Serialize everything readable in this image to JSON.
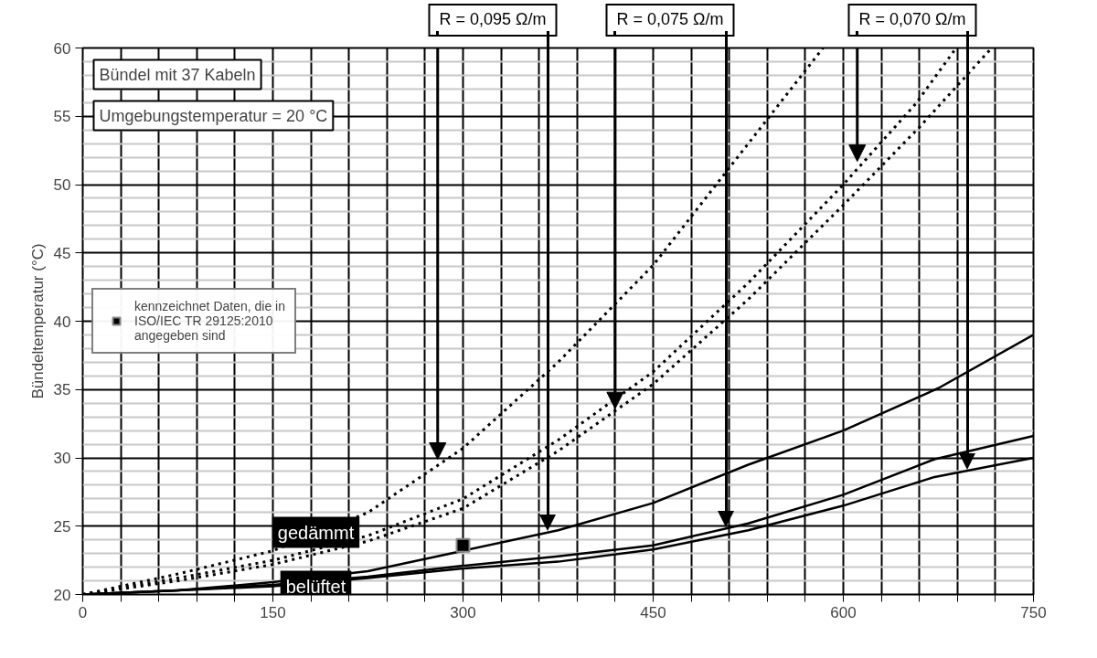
{
  "chart_data": {
    "type": "line",
    "ylabel": "Bündeltemperatur (°C)",
    "xlim": [
      0,
      750
    ],
    "xticks": [
      0,
      {
        "value": 30,
        "label": null
      },
      {
        "value": 60,
        "label": null
      },
      {
        "value": 90,
        "label": null
      },
      {
        "value": 120,
        "label": null
      },
      150,
      {
        "value": 180,
        "label": null
      },
      {
        "value": 210,
        "label": null
      },
      {
        "value": 240,
        "label": null
      },
      {
        "value": 270,
        "label": null
      },
      300,
      {
        "value": 330,
        "label": null
      },
      {
        "value": 360,
        "label": null
      },
      {
        "value": 390,
        "label": null
      },
      {
        "value": 420,
        "label": null
      },
      450,
      {
        "value": 480,
        "label": null
      },
      {
        "value": 510,
        "label": null
      },
      {
        "value": 540,
        "label": null
      },
      {
        "value": 570,
        "label": null
      },
      600,
      {
        "value": 630,
        "label": null
      },
      {
        "value": 660,
        "label": null
      },
      {
        "value": 690,
        "label": null
      },
      {
        "value": 720,
        "label": null
      },
      750
    ],
    "ylim": [
      20,
      60
    ],
    "yticks": [
      20,
      25,
      30,
      35,
      40,
      45,
      50,
      55,
      60
    ],
    "grid": true,
    "legend": "left",
    "series": [
      {
        "color": "#000000",
        "line_style": "dotted",
        "x": [
          0,
          75,
          150,
          225,
          300,
          375,
          450,
          525,
          584
        ],
        "values": [
          20,
          21.5,
          23.2,
          26.0,
          30.7,
          37.0,
          44.1,
          53.0,
          60
        ]
      },
      {
        "color": "#000000",
        "line_style": "dotted",
        "x": [
          0,
          75,
          150,
          225,
          300,
          375,
          450,
          525,
          600,
          657,
          689
        ],
        "values": [
          20,
          21.2,
          22.5,
          24.3,
          27.0,
          31.3,
          36.3,
          42.8,
          50.0,
          55.9,
          60
        ]
      },
      {
        "color": "#000000",
        "line_style": "dotted",
        "x": [
          0,
          75,
          150,
          225,
          300,
          375,
          450,
          525,
          600,
          660,
          717
        ],
        "values": [
          20,
          21.0,
          22.2,
          23.9,
          26.3,
          30.5,
          35.4,
          41.6,
          48.5,
          54.2,
          60
        ]
      },
      {
        "color": "#000000",
        "line_style": "solid",
        "x": [
          0,
          75,
          150,
          225,
          300,
          375,
          450,
          525,
          600,
          675,
          750
        ],
        "values": [
          20,
          20.3,
          20.9,
          21.7,
          23.2,
          24.7,
          26.7,
          29.5,
          32.0,
          35.1,
          39.0
        ]
      },
      {
        "color": "#000000",
        "line_style": "solid",
        "x": [
          0,
          75,
          150,
          225,
          300,
          375,
          450,
          525,
          600,
          672,
          750
        ],
        "values": [
          20,
          20.3,
          20.7,
          21.3,
          22.1,
          22.8,
          23.6,
          25.2,
          27.3,
          29.9,
          31.6
        ]
      },
      {
        "color": "#000000",
        "line_style": "solid",
        "x": [
          0,
          75,
          150,
          225,
          300,
          375,
          450,
          525,
          600,
          672,
          750
        ],
        "values": [
          20,
          20.3,
          20.6,
          21.2,
          21.9,
          22.4,
          23.3,
          24.7,
          26.5,
          28.6,
          30.0
        ]
      },
      {
        "type": "scatter",
        "marker": "square",
        "name": "kennzeichnet Daten, die in ISO/IEC TR 29125:2010 angegeben sind",
        "color": "#000000",
        "x": [
          300
        ],
        "values": [
          23.6
        ]
      }
    ],
    "annotations": [
      "Bündel mit 37 Kabeln",
      "Umgebungstemperatur = 20 °C",
      "gedämmt",
      "belüftet",
      {
        "text": "R = 0,095 Ω/m",
        "x": 280,
        "y": 29.9
      },
      {
        "text": "R = 0,075 Ω/m",
        "x": 420,
        "y": 33.6
      },
      {
        "text": "R = 0,070 Ω/m",
        "x": 611,
        "y": 51.7
      }
    ]
  }
}
